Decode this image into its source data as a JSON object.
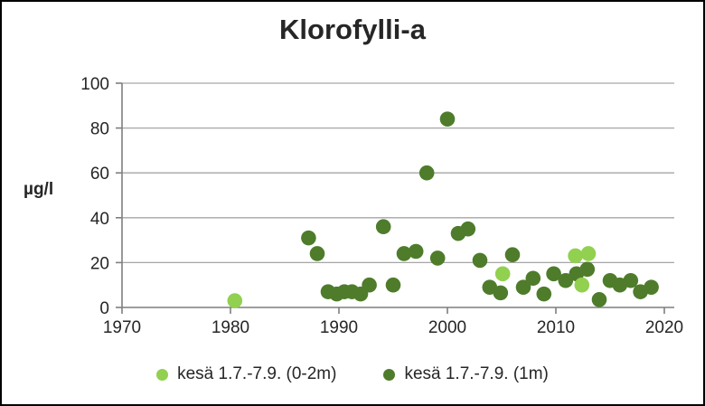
{
  "chart_data": {
    "type": "scatter",
    "title": "Klorofylli-a",
    "ylabel": "µg/l",
    "xlabel": "",
    "xlim": [
      1970,
      2020
    ],
    "ylim": [
      0,
      100
    ],
    "x_ticks": [
      1970,
      1980,
      1990,
      2000,
      2010,
      2020
    ],
    "y_ticks": [
      0,
      20,
      40,
      60,
      80,
      100
    ],
    "grid": "horizontal",
    "legend_position": "bottom",
    "series": [
      {
        "name": "kesä 1.7.-7.9. (0-2m)",
        "color": "#92d050",
        "points": [
          [
            1980.4,
            3
          ],
          [
            2005.1,
            15
          ],
          [
            2011.8,
            23
          ],
          [
            2012.4,
            10
          ],
          [
            2013.0,
            24
          ]
        ]
      },
      {
        "name": "kesä 1.7.-7.9. (1m)",
        "color": "#4e7c2b",
        "points": [
          [
            1987.2,
            31
          ],
          [
            1988.0,
            24
          ],
          [
            1989.0,
            7
          ],
          [
            1989.8,
            6
          ],
          [
            1990.5,
            7
          ],
          [
            1991.2,
            7
          ],
          [
            1992.0,
            6
          ],
          [
            1992.8,
            10
          ],
          [
            1994.1,
            36
          ],
          [
            1995.0,
            10
          ],
          [
            1996.0,
            24
          ],
          [
            1997.1,
            25
          ],
          [
            1998.1,
            60
          ],
          [
            1999.1,
            22
          ],
          [
            2000.0,
            84
          ],
          [
            2001.0,
            33
          ],
          [
            2001.9,
            35
          ],
          [
            2003.0,
            21
          ],
          [
            2003.9,
            9
          ],
          [
            2004.9,
            6.5
          ],
          [
            2006.0,
            23.5
          ],
          [
            2007.0,
            9
          ],
          [
            2007.9,
            13
          ],
          [
            2008.9,
            6
          ],
          [
            2009.8,
            15
          ],
          [
            2010.9,
            12
          ],
          [
            2011.9,
            15
          ],
          [
            2012.9,
            17
          ],
          [
            2014.0,
            3.5
          ],
          [
            2015.0,
            12
          ],
          [
            2015.9,
            10
          ],
          [
            2016.9,
            12
          ],
          [
            2017.8,
            7
          ],
          [
            2018.8,
            9
          ]
        ]
      }
    ]
  }
}
